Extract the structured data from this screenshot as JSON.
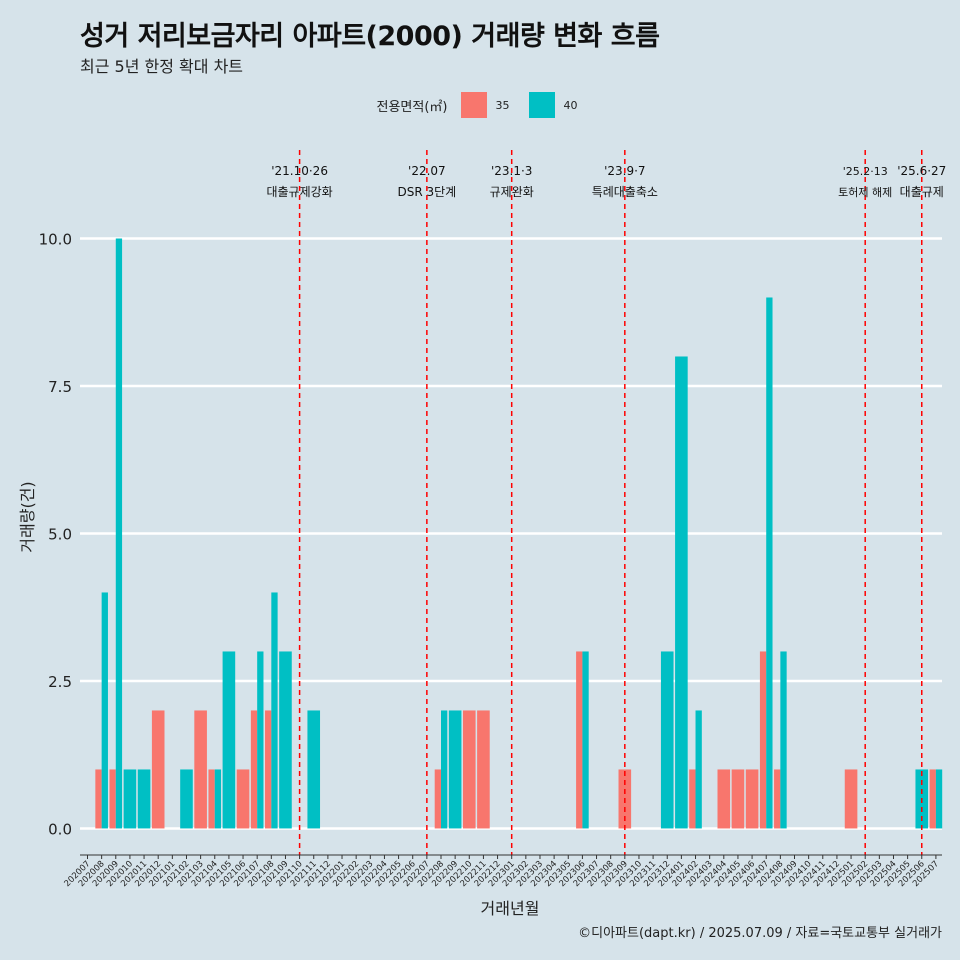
{
  "title": "성거 저리보금자리 아파트(2000) 거래량 변화 흐름",
  "subtitle": "최근 5년 한정 확대 차트",
  "caption": "©디아파트(dapt.kr) / 2025.07.09 / 자료=국토교통부 실거래가",
  "colors": {
    "s35": "#f8766d",
    "s40": "#00bfc4",
    "vline": "#ff0000",
    "grid": "#ffffff"
  },
  "chart_data": {
    "type": "bar",
    "title": "성거 저리보금자리 아파트(2000) 거래량 변화 흐름",
    "xlabel": "거래년월",
    "ylabel": "거래량(건)",
    "ylim": [
      -0.45,
      11.5
    ],
    "yticks": [
      0.0,
      2.5,
      5.0,
      7.5,
      10.0
    ],
    "ytick_labels": [
      "0.0",
      "2.5",
      "5.0",
      "7.5",
      "10.0"
    ],
    "legend_title": "전용면적(㎡)",
    "legend_position": "top",
    "categories": [
      "202007",
      "202008",
      "202009",
      "202010",
      "202011",
      "202012",
      "202101",
      "202102",
      "202103",
      "202104",
      "202105",
      "202106",
      "202107",
      "202108",
      "202109",
      "202110",
      "202111",
      "202112",
      "202201",
      "202202",
      "202203",
      "202204",
      "202205",
      "202206",
      "202207",
      "202208",
      "202209",
      "202210",
      "202211",
      "202212",
      "202301",
      "202302",
      "202303",
      "202304",
      "202305",
      "202306",
      "202307",
      "202308",
      "202309",
      "202310",
      "202311",
      "202312",
      "202401",
      "202402",
      "202403",
      "202404",
      "202405",
      "202406",
      "202407",
      "202408",
      "202409",
      "202410",
      "202411",
      "202412",
      "202501",
      "202502",
      "202503",
      "202504",
      "202505",
      "202506",
      "202507"
    ],
    "series": [
      {
        "name": "35",
        "values": [
          0,
          1,
          1,
          0,
          0,
          2,
          0,
          0,
          2,
          1,
          0,
          1,
          2,
          2,
          0,
          0,
          0,
          0,
          0,
          0,
          0,
          0,
          0,
          0,
          0,
          1,
          0,
          2,
          2,
          0,
          0,
          0,
          0,
          0,
          0,
          3,
          0,
          0,
          1,
          0,
          0,
          0,
          0,
          1,
          0,
          1,
          1,
          1,
          3,
          1,
          0,
          0,
          0,
          0,
          1,
          0,
          0,
          0,
          0,
          0,
          1
        ]
      },
      {
        "name": "40",
        "values": [
          0,
          4,
          10,
          1,
          1,
          0,
          0,
          1,
          0,
          1,
          3,
          0,
          3,
          4,
          3,
          0,
          2,
          0,
          0,
          0,
          0,
          0,
          0,
          0,
          0,
          2,
          2,
          0,
          0,
          0,
          0,
          0,
          0,
          0,
          0,
          3,
          0,
          0,
          0,
          0,
          0,
          3,
          8,
          2,
          0,
          0,
          0,
          0,
          9,
          3,
          0,
          0,
          0,
          0,
          0,
          0,
          0,
          0,
          0,
          1,
          1
        ]
      }
    ],
    "annotations": [
      {
        "x": "202110",
        "date": "'21.10·26",
        "label": "대출규제강화"
      },
      {
        "x": "202207",
        "date": "'22.07",
        "label": "DSR 3단계"
      },
      {
        "x": "202301",
        "date": "'23.1·3",
        "label": "규제완화"
      },
      {
        "x": "202309",
        "date": "'23.9·7",
        "label": "특례대출축소"
      },
      {
        "x": "202502",
        "date": "'25.2·13",
        "label": "토허제 해제"
      },
      {
        "x": "202506",
        "date": "'25.6·27",
        "label": "대출규제"
      }
    ]
  }
}
